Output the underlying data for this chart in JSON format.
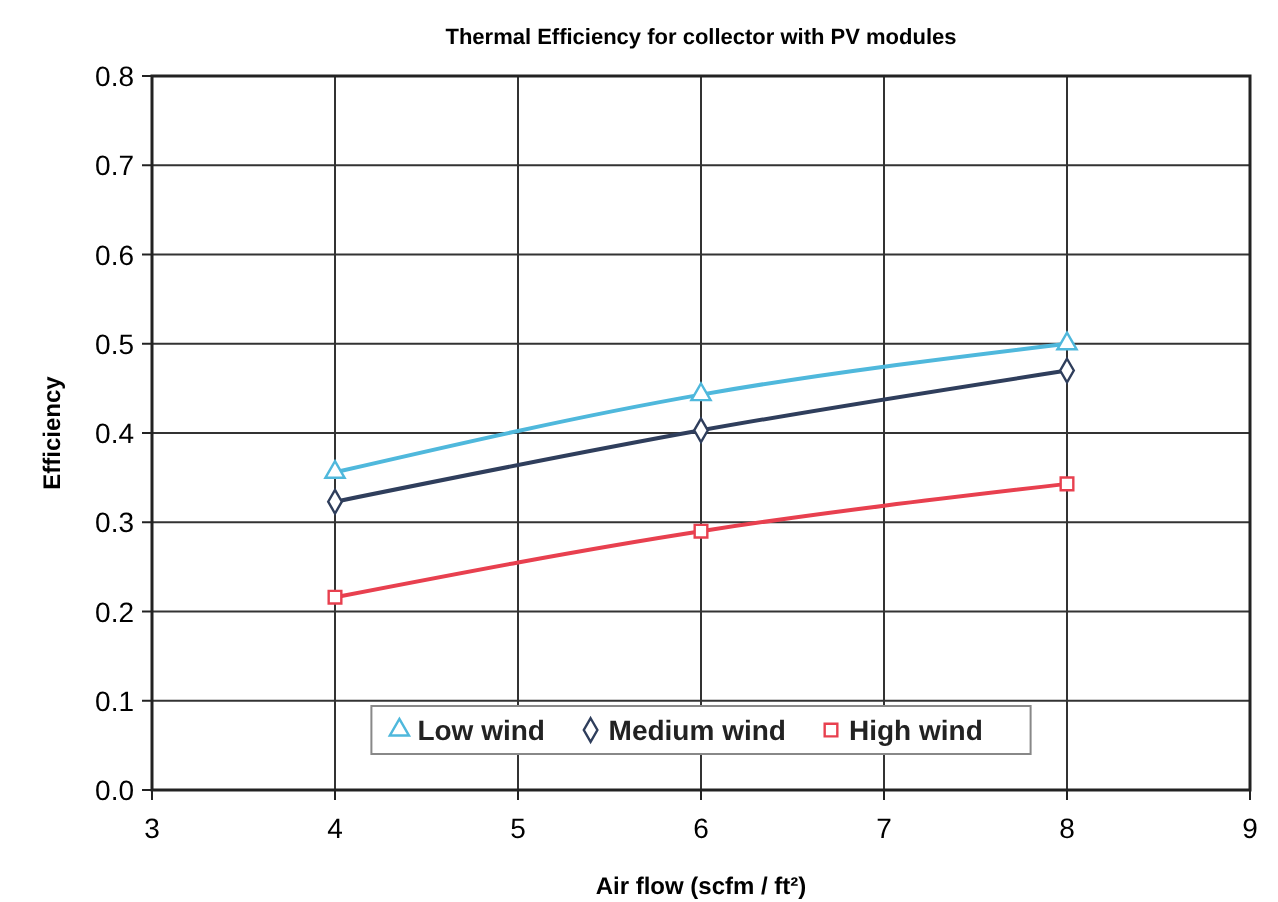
{
  "chart_data": {
    "type": "line",
    "title": "Thermal Efficiency for collector with PV modules",
    "xlabel": "Air flow (scfm / ft²)",
    "ylabel": "Efficiency",
    "xlim": [
      3,
      9
    ],
    "xticks": [
      3,
      4,
      5,
      6,
      7,
      8,
      9
    ],
    "ylim": [
      0,
      0.8
    ],
    "yticks": [
      {
        "value": 0,
        "label": "0.0"
      },
      {
        "value": 0.1,
        "label": "0.1"
      },
      {
        "value": 0.2,
        "label": "0.2"
      },
      {
        "value": 0.3,
        "label": "0.3"
      },
      {
        "value": 0.4,
        "label": "0.4"
      },
      {
        "value": 0.5,
        "label": "0.5"
      },
      {
        "value": 0.6,
        "label": "0.6"
      },
      {
        "value": 0.7,
        "label": "0.7"
      },
      {
        "value": 0.8,
        "label": "0.8"
      }
    ],
    "x": [
      4,
      6,
      8
    ],
    "grid": true,
    "legend": "bottom",
    "line_style": "solid",
    "series": [
      {
        "name": "Low wind",
        "color": "#4fb8dc",
        "marker": "triangle",
        "values": [
          0.356,
          0.443,
          0.5
        ]
      },
      {
        "name": "Medium wind",
        "color": "#2f3e5c",
        "marker": "diamond",
        "values": [
          0.323,
          0.403,
          0.47
        ]
      },
      {
        "name": "High wind",
        "color": "#e8404f",
        "marker": "square",
        "values": [
          0.216,
          0.29,
          0.343
        ]
      }
    ]
  }
}
